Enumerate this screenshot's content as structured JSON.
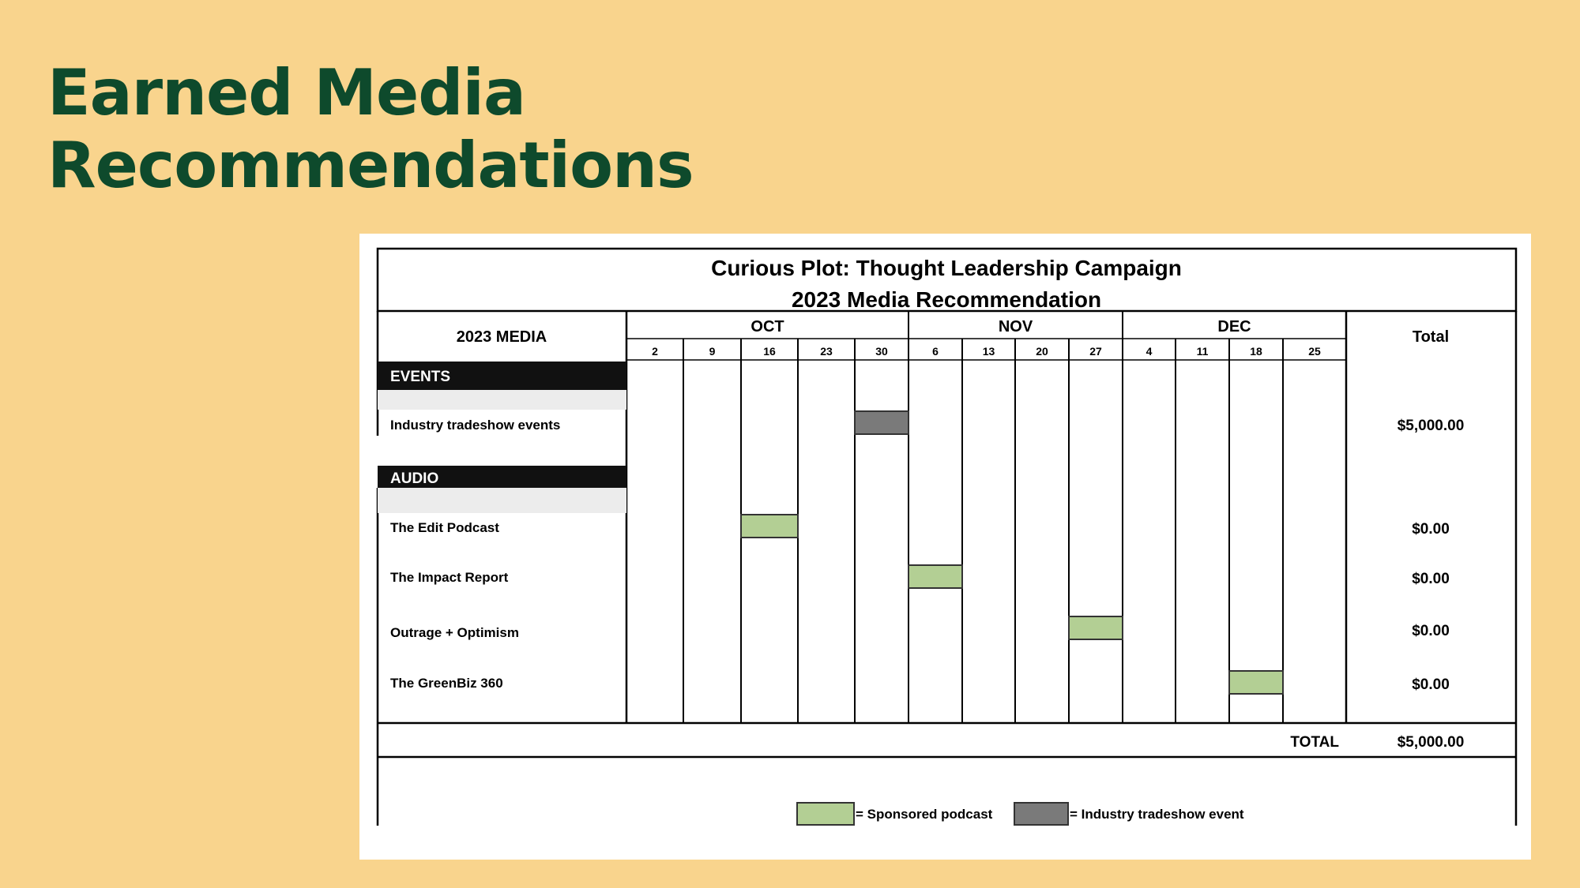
{
  "slide": {
    "title_line1": "Earned Media",
    "title_line2": "Recommendations"
  },
  "schedule": {
    "title_line1": "Curious Plot: Thought Leadership Campaign",
    "title_line2": "2023 Media Recommendation",
    "media_header": "2023 MEDIA",
    "total_header": "Total",
    "months": [
      {
        "label": "OCT",
        "weeks": [
          "2",
          "9",
          "16",
          "23",
          "30"
        ]
      },
      {
        "label": "NOV",
        "weeks": [
          "6",
          "13",
          "20",
          "27"
        ]
      },
      {
        "label": "DEC",
        "weeks": [
          "4",
          "11",
          "18",
          "25"
        ]
      }
    ],
    "sections": [
      {
        "label": "EVENTS"
      },
      {
        "label": "AUDIO"
      }
    ],
    "rows": [
      {
        "label": "Industry tradeshow events",
        "week_index": 4,
        "type": "tradeshow",
        "total": "$5,000.00"
      },
      {
        "label": "The Edit Podcast",
        "week_index": 2,
        "type": "podcast",
        "total": "$0.00"
      },
      {
        "label": "The Impact Report",
        "week_index": 5,
        "type": "podcast",
        "total": "$0.00"
      },
      {
        "label": "Outrage + Optimism",
        "week_index": 8,
        "type": "podcast",
        "total": "$0.00"
      },
      {
        "label": "The GreenBiz 360",
        "week_index": 11,
        "type": "podcast",
        "total": "$0.00"
      }
    ],
    "grand_total_label": "TOTAL",
    "grand_total": "$5,000.00",
    "legend": [
      {
        "type": "podcast",
        "label": "= Sponsored podcast"
      },
      {
        "type": "tradeshow",
        "label": "= Industry tradeshow event"
      }
    ],
    "colors": {
      "podcast": "#B3CF94",
      "tradeshow": "#7A7A7A",
      "section_bg": "#111111",
      "shaded_row": "#ECECEC",
      "title_green": "#0E4A2C",
      "slide_bg": "#F9D48D"
    }
  }
}
